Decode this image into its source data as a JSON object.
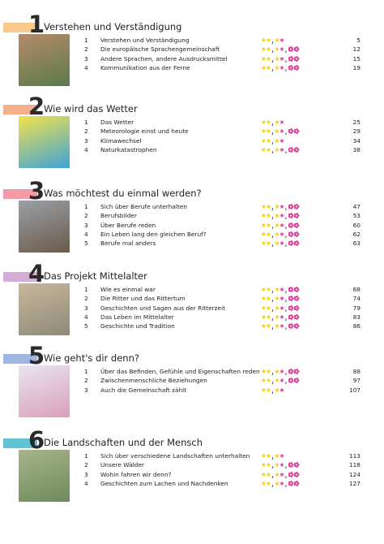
{
  "chapters": [
    {
      "number": 1,
      "title": "Verstehen und Verständigung",
      "items": [
        {
          "number": 1,
          "title": "Verstehen und Verständigung",
          "page": 5
        },
        {
          "number": 2,
          "title": "Die europäische Sprachengemeinschaft",
          "page": 12
        },
        {
          "number": 3,
          "title": "Andere Sprachen, andere Ausdrucksmittel",
          "page": 15
        },
        {
          "number": 4,
          "title": "Kommunikation aus der Ferne",
          "page": 19
        }
      ]
    },
    {
      "number": 2,
      "title": "Wie wird das Wetter",
      "items": [
        {
          "number": 1,
          "title": "Das Wetter",
          "page": 25
        },
        {
          "number": 2,
          "title": "Meteorologie einst und heute",
          "page": 29
        },
        {
          "number": 3,
          "title": "Klimawechsel",
          "page": 34
        },
        {
          "number": 4,
          "title": "Naturkatastrophen",
          "page": 38
        }
      ]
    },
    {
      "number": 3,
      "title": "Was möchtest du einmal werden?",
      "items": [
        {
          "number": 1,
          "title": "Sich über Berufe unterhalten",
          "page": 47
        },
        {
          "number": 2,
          "title": "Berufsbilder",
          "page": 53
        },
        {
          "number": 3,
          "title": "Über Berufe reden",
          "page": 60
        },
        {
          "number": 4,
          "title": "Ein Leben lang den gleichen Beruf?",
          "page": 62
        },
        {
          "number": 5,
          "title": "Berufe mal anders",
          "page": 63
        }
      ]
    },
    {
      "number": 4,
      "title": "Das Projekt Mittelalter",
      "items": [
        {
          "number": 1,
          "title": "Wie es einmal war",
          "page": 68
        },
        {
          "number": 2,
          "title": "Die Ritter und das Rittertum",
          "page": 74
        },
        {
          "number": 3,
          "title": "Geschichten und Sagen aus der Ritterzeit",
          "page": 79
        },
        {
          "number": 4,
          "title": "Das Leben im Mittelalter",
          "page": 83
        },
        {
          "number": 5,
          "title": "Geschichte und Tradition",
          "page": 86
        }
      ]
    },
    {
      "number": 5,
      "title": "Wie geht's dir denn?",
      "items": [
        {
          "number": 1,
          "title": "Über das Befinden, Gefühle und Eigenschaften reden",
          "page": 88
        },
        {
          "number": 2,
          "title": "Zwischenmenschliche Beziehungen",
          "page": 97
        },
        {
          "number": 3,
          "title": "Auch die Gemeinschaft zählt",
          "page": 107
        }
      ]
    },
    {
      "number": 6,
      "title": "Die Landschaften und der Mensch",
      "items": [
        {
          "number": 1,
          "title": "Sich über verschiedene Landschaften unterhalten",
          "page": 113
        },
        {
          "number": 2,
          "title": "Unsere Wälder",
          "page": 118
        },
        {
          "number": 3,
          "title": "Wohin fahren wir denn?",
          "page": 124
        },
        {
          "number": 4,
          "title": "Geschichten zum Lachen und Nachdenken",
          "page": 127
        }
      ]
    }
  ]
}
